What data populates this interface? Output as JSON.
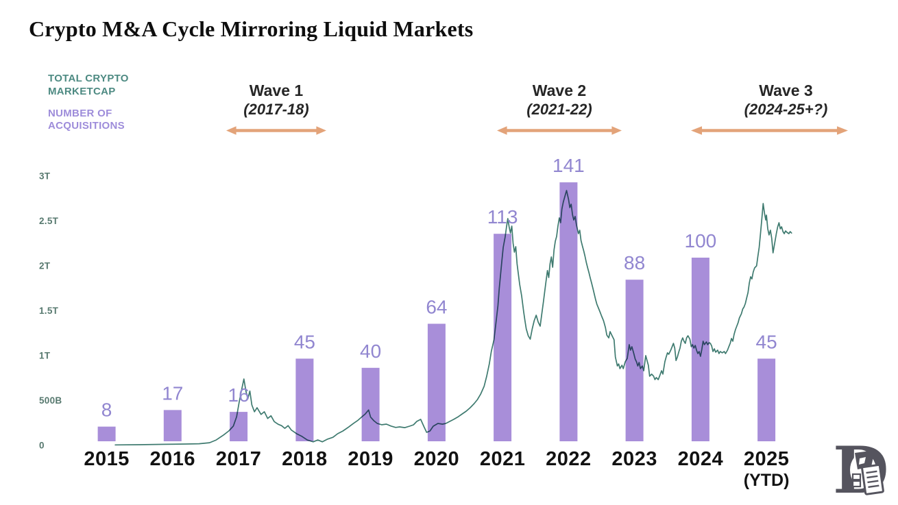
{
  "title": "Crypto M&A Cycle Mirroring Liquid Markets",
  "legend": {
    "marketcap_label": "TOTAL CRYPTO MARKETCAP",
    "acquisitions_label": "NUMBER OF ACQUISITIONS"
  },
  "waves": [
    {
      "name": "Wave 1",
      "range": "(2017-18)"
    },
    {
      "name": "Wave 2",
      "range": "(2021-22)"
    },
    {
      "name": "Wave 3",
      "range": "(2024-25+?)"
    }
  ],
  "colors": {
    "bar_purple": "#a88ed9",
    "line_teal": "#3e7a6f",
    "arrow_orange": "#e3a379",
    "legend_teal": "#4d8a82",
    "legend_purple": "#9d8cda",
    "value_label_purple": "#9186d0",
    "tick_teal": "#57796f"
  },
  "chart_data": {
    "type": [
      "bar",
      "line"
    ],
    "title": "Crypto M&A Cycle Mirroring Liquid Markets",
    "categories": [
      "2015",
      "2016",
      "2017",
      "2018",
      "2019",
      "2020",
      "2021",
      "2022",
      "2023",
      "2024",
      "2025"
    ],
    "x_sublabels": [
      null,
      null,
      null,
      null,
      null,
      null,
      null,
      null,
      null,
      null,
      "(YTD)"
    ],
    "acquisitions": [
      8,
      17,
      16,
      45,
      40,
      64,
      113,
      141,
      88,
      100,
      45
    ],
    "y_tick_labels": [
      "3T",
      "2.5T",
      "2T",
      "1.5T",
      "1T",
      "500B",
      "0"
    ],
    "y_tick_values": [
      3000,
      2500,
      2000,
      1500,
      1000,
      500,
      0
    ],
    "ylim_billions": [
      0,
      3000
    ],
    "grid": false,
    "legend_position": "top-left",
    "marketcap_units": "billions_usd",
    "marketcap_series": [
      [
        2015.13,
        5
      ],
      [
        2015.5,
        8
      ],
      [
        2015.9,
        12
      ],
      [
        2016.2,
        15
      ],
      [
        2016.4,
        18
      ],
      [
        2016.56,
        30
      ],
      [
        2016.66,
        60
      ],
      [
        2016.77,
        115
      ],
      [
        2016.85,
        160
      ],
      [
        2016.92,
        215
      ],
      [
        2016.97,
        320
      ],
      [
        2017.01,
        490
      ],
      [
        2017.05,
        635
      ],
      [
        2017.08,
        740
      ],
      [
        2017.11,
        605
      ],
      [
        2017.14,
        520
      ],
      [
        2017.17,
        605
      ],
      [
        2017.2,
        450
      ],
      [
        2017.24,
        375
      ],
      [
        2017.28,
        420
      ],
      [
        2017.34,
        345
      ],
      [
        2017.39,
        375
      ],
      [
        2017.44,
        300
      ],
      [
        2017.49,
        330
      ],
      [
        2017.54,
        265
      ],
      [
        2017.6,
        235
      ],
      [
        2017.65,
        220
      ],
      [
        2017.7,
        190
      ],
      [
        2017.75,
        220
      ],
      [
        2017.8,
        170
      ],
      [
        2017.88,
        130
      ],
      [
        2017.96,
        100
      ],
      [
        2018.04,
        60
      ],
      [
        2018.13,
        40
      ],
      [
        2018.2,
        60
      ],
      [
        2018.27,
        40
      ],
      [
        2018.35,
        70
      ],
      [
        2018.43,
        90
      ],
      [
        2018.5,
        130
      ],
      [
        2018.58,
        160
      ],
      [
        2018.67,
        205
      ],
      [
        2018.74,
        245
      ],
      [
        2018.81,
        280
      ],
      [
        2018.87,
        320
      ],
      [
        2018.92,
        350
      ],
      [
        2018.97,
        395
      ],
      [
        2019.0,
        315
      ],
      [
        2019.05,
        275
      ],
      [
        2019.1,
        245
      ],
      [
        2019.17,
        230
      ],
      [
        2019.24,
        237
      ],
      [
        2019.31,
        215
      ],
      [
        2019.38,
        200
      ],
      [
        2019.44,
        206
      ],
      [
        2019.52,
        198
      ],
      [
        2019.59,
        214
      ],
      [
        2019.65,
        229
      ],
      [
        2019.7,
        267
      ],
      [
        2019.76,
        290
      ],
      [
        2019.81,
        206
      ],
      [
        2019.85,
        145
      ],
      [
        2019.9,
        160
      ],
      [
        2019.95,
        214
      ],
      [
        2020.02,
        244
      ],
      [
        2020.09,
        237
      ],
      [
        2020.14,
        244
      ],
      [
        2020.2,
        267
      ],
      [
        2020.26,
        290
      ],
      [
        2020.33,
        320
      ],
      [
        2020.39,
        351
      ],
      [
        2020.45,
        382
      ],
      [
        2020.51,
        420
      ],
      [
        2020.57,
        466
      ],
      [
        2020.62,
        511
      ],
      [
        2020.67,
        573
      ],
      [
        2020.72,
        657
      ],
      [
        2020.76,
        771
      ],
      [
        2020.8,
        908
      ],
      [
        2020.83,
        1046
      ],
      [
        2020.87,
        1176
      ],
      [
        2020.9,
        1366
      ],
      [
        2020.93,
        1557
      ],
      [
        2020.95,
        1748
      ],
      [
        2020.97,
        1901
      ],
      [
        2020.99,
        2053
      ],
      [
        2021.01,
        2206
      ],
      [
        2021.04,
        2321
      ],
      [
        2021.06,
        2435
      ],
      [
        2021.08,
        2527
      ],
      [
        2021.1,
        2435
      ],
      [
        2021.12,
        2366
      ],
      [
        2021.14,
        2443
      ],
      [
        2021.16,
        2252
      ],
      [
        2021.18,
        2153
      ],
      [
        2021.2,
        2214
      ],
      [
        2021.22,
        2023
      ],
      [
        2021.24,
        1908
      ],
      [
        2021.26,
        1794
      ],
      [
        2021.29,
        1664
      ],
      [
        2021.32,
        1489
      ],
      [
        2021.34,
        1389
      ],
      [
        2021.36,
        1298
      ],
      [
        2021.39,
        1221
      ],
      [
        2021.42,
        1183
      ],
      [
        2021.45,
        1298
      ],
      [
        2021.48,
        1389
      ],
      [
        2021.51,
        1450
      ],
      [
        2021.54,
        1374
      ],
      [
        2021.57,
        1328
      ],
      [
        2021.6,
        1489
      ],
      [
        2021.62,
        1603
      ],
      [
        2021.64,
        1718
      ],
      [
        2021.66,
        1832
      ],
      [
        2021.68,
        1947
      ],
      [
        2021.7,
        1870
      ],
      [
        2021.72,
        2023
      ],
      [
        2021.74,
        2099
      ],
      [
        2021.76,
        1985
      ],
      [
        2021.78,
        2176
      ],
      [
        2021.8,
        2275
      ],
      [
        2021.82,
        2328
      ],
      [
        2021.84,
        2443
      ],
      [
        2021.86,
        2534
      ],
      [
        2021.88,
        2481
      ],
      [
        2021.9,
        2634
      ],
      [
        2021.92,
        2710
      ],
      [
        2021.95,
        2786
      ],
      [
        2021.97,
        2840
      ],
      [
        2022.0,
        2740
      ],
      [
        2022.02,
        2649
      ],
      [
        2022.04,
        2687
      ],
      [
        2022.06,
        2573
      ],
      [
        2022.08,
        2511
      ],
      [
        2022.1,
        2550
      ],
      [
        2022.12,
        2458
      ],
      [
        2022.15,
        2359
      ],
      [
        2022.17,
        2397
      ],
      [
        2022.19,
        2282
      ],
      [
        2022.21,
        2221
      ],
      [
        2022.23,
        2168
      ],
      [
        2022.25,
        2107
      ],
      [
        2022.27,
        2038
      ],
      [
        2022.29,
        1977
      ],
      [
        2022.31,
        1924
      ],
      [
        2022.33,
        1863
      ],
      [
        2022.35,
        1809
      ],
      [
        2022.37,
        1748
      ],
      [
        2022.39,
        1687
      ],
      [
        2022.41,
        1626
      ],
      [
        2022.43,
        1573
      ],
      [
        2022.46,
        1519
      ],
      [
        2022.48,
        1481
      ],
      [
        2022.5,
        1443
      ],
      [
        2022.53,
        1389
      ],
      [
        2022.56,
        1313
      ],
      [
        2022.58,
        1229
      ],
      [
        2022.61,
        1198
      ],
      [
        2022.63,
        1267
      ],
      [
        2022.66,
        1221
      ],
      [
        2022.69,
        1176
      ],
      [
        2022.71,
        985
      ],
      [
        2022.74,
        885
      ],
      [
        2022.76,
        908
      ],
      [
        2022.78,
        855
      ],
      [
        2022.81,
        893
      ],
      [
        2022.83,
        855
      ],
      [
        2022.86,
        931
      ],
      [
        2022.89,
        969
      ],
      [
        2022.92,
        1122
      ],
      [
        2022.94,
        1061
      ],
      [
        2022.96,
        1099
      ],
      [
        2022.99,
        1023
      ],
      [
        2023.01,
        962
      ],
      [
        2023.03,
        931
      ],
      [
        2023.05,
        885
      ],
      [
        2023.07,
        924
      ],
      [
        2023.09,
        855
      ],
      [
        2023.12,
        885
      ],
      [
        2023.14,
        832
      ],
      [
        2023.17,
        1000
      ],
      [
        2023.19,
        946
      ],
      [
        2023.21,
        893
      ],
      [
        2023.23,
        771
      ],
      [
        2023.26,
        794
      ],
      [
        2023.29,
        771
      ],
      [
        2023.31,
        733
      ],
      [
        2023.33,
        756
      ],
      [
        2023.36,
        733
      ],
      [
        2023.38,
        771
      ],
      [
        2023.41,
        832
      ],
      [
        2023.43,
        794
      ],
      [
        2023.46,
        931
      ],
      [
        2023.48,
        985
      ],
      [
        2023.5,
        1031
      ],
      [
        2023.52,
        1015
      ],
      [
        2023.55,
        1061
      ],
      [
        2023.57,
        1099
      ],
      [
        2023.59,
        1137
      ],
      [
        2023.61,
        1084
      ],
      [
        2023.63,
        946
      ],
      [
        2023.65,
        985
      ],
      [
        2023.67,
        1038
      ],
      [
        2023.69,
        1084
      ],
      [
        2023.71,
        1160
      ],
      [
        2023.73,
        1198
      ],
      [
        2023.75,
        1160
      ],
      [
        2023.77,
        1137
      ],
      [
        2023.79,
        1198
      ],
      [
        2023.81,
        1221
      ],
      [
        2023.84,
        1183
      ],
      [
        2023.86,
        1099
      ],
      [
        2023.88,
        1122
      ],
      [
        2023.9,
        1084
      ],
      [
        2023.92,
        1114
      ],
      [
        2023.94,
        1061
      ],
      [
        2023.96,
        1023
      ],
      [
        2023.98,
        1046
      ],
      [
        2024.0,
        992
      ],
      [
        2024.02,
        1069
      ],
      [
        2024.04,
        1160
      ],
      [
        2024.06,
        1122
      ],
      [
        2024.09,
        1153
      ],
      [
        2024.11,
        1122
      ],
      [
        2024.13,
        1145
      ],
      [
        2024.15,
        1137
      ],
      [
        2024.17,
        1107
      ],
      [
        2024.19,
        1046
      ],
      [
        2024.21,
        1076
      ],
      [
        2024.23,
        1038
      ],
      [
        2024.26,
        1061
      ],
      [
        2024.28,
        1023
      ],
      [
        2024.3,
        1046
      ],
      [
        2024.33,
        1031
      ],
      [
        2024.36,
        1046
      ],
      [
        2024.38,
        1023
      ],
      [
        2024.41,
        1061
      ],
      [
        2024.43,
        1099
      ],
      [
        2024.45,
        1137
      ],
      [
        2024.47,
        1191
      ],
      [
        2024.49,
        1160
      ],
      [
        2024.51,
        1237
      ],
      [
        2024.53,
        1290
      ],
      [
        2024.55,
        1328
      ],
      [
        2024.57,
        1366
      ],
      [
        2024.59,
        1420
      ],
      [
        2024.62,
        1466
      ],
      [
        2024.64,
        1519
      ],
      [
        2024.66,
        1542
      ],
      [
        2024.68,
        1580
      ],
      [
        2024.7,
        1641
      ],
      [
        2024.72,
        1702
      ],
      [
        2024.74,
        1809
      ],
      [
        2024.76,
        1878
      ],
      [
        2024.78,
        1855
      ],
      [
        2024.8,
        1931
      ],
      [
        2024.82,
        1977
      ],
      [
        2024.85,
        2000
      ],
      [
        2024.87,
        2107
      ],
      [
        2024.89,
        2206
      ],
      [
        2024.91,
        2359
      ],
      [
        2024.93,
        2527
      ],
      [
        2024.95,
        2695
      ],
      [
        2024.97,
        2588
      ],
      [
        2024.99,
        2511
      ],
      [
        2025.0,
        2565
      ],
      [
        2025.02,
        2412
      ],
      [
        2025.04,
        2344
      ],
      [
        2025.06,
        2397
      ],
      [
        2025.08,
        2305
      ],
      [
        2025.1,
        2145
      ],
      [
        2025.12,
        2229
      ],
      [
        2025.15,
        2359
      ],
      [
        2025.17,
        2435
      ],
      [
        2025.19,
        2481
      ],
      [
        2025.21,
        2412
      ],
      [
        2025.23,
        2435
      ],
      [
        2025.25,
        2382
      ],
      [
        2025.27,
        2359
      ],
      [
        2025.29,
        2389
      ],
      [
        2025.31,
        2374
      ],
      [
        2025.34,
        2359
      ],
      [
        2025.36,
        2382
      ],
      [
        2025.38,
        2366
      ]
    ]
  }
}
